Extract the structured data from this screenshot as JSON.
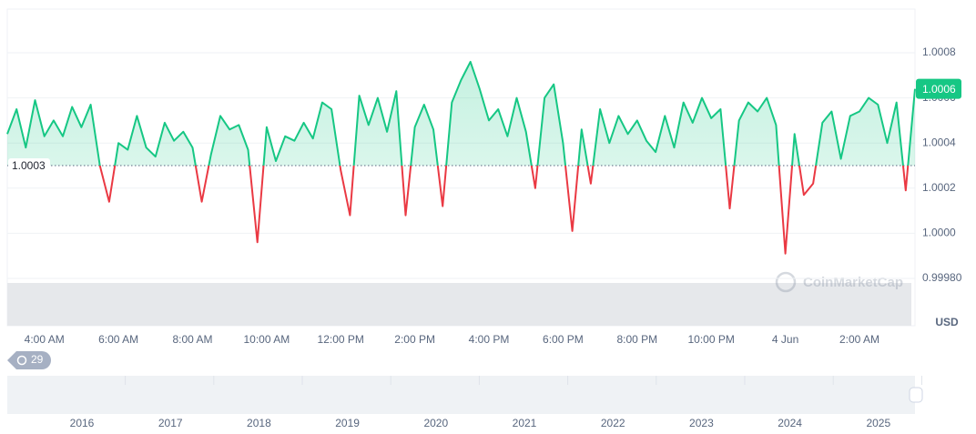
{
  "chart_data": {
    "type": "line",
    "categories": [
      null,
      null,
      null,
      null,
      "4:00 AM",
      null,
      null,
      null,
      null,
      null,
      null,
      null,
      "6:00 AM",
      null,
      null,
      null,
      null,
      null,
      null,
      null,
      "8:00 AM",
      null,
      null,
      null,
      null,
      null,
      null,
      null,
      "10:00 AM",
      null,
      null,
      null,
      null,
      null,
      null,
      null,
      "12:00 PM",
      null,
      null,
      null,
      null,
      null,
      null,
      null,
      "2:00 PM",
      null,
      null,
      null,
      null,
      null,
      null,
      null,
      "4:00 PM",
      null,
      null,
      null,
      null,
      null,
      null,
      null,
      "6:00 PM",
      null,
      null,
      null,
      null,
      null,
      null,
      null,
      "8:00 PM",
      null,
      null,
      null,
      null,
      null,
      null,
      null,
      "10:00 PM",
      null,
      null,
      null,
      null,
      null,
      null,
      null,
      "4 Jun",
      null,
      null,
      null,
      null,
      null,
      null,
      null,
      "2:00 AM",
      null,
      null,
      null,
      null,
      null,
      null
    ],
    "values": [
      1.00044,
      1.00055,
      1.00038,
      1.00059,
      1.00043,
      1.0005,
      1.00043,
      1.00056,
      1.00047,
      1.00057,
      1.0003,
      1.00014,
      1.0004,
      1.00037,
      1.00052,
      1.00038,
      1.00034,
      1.00049,
      1.00041,
      1.00045,
      1.00038,
      1.00014,
      1.00035,
      1.00052,
      1.00046,
      1.00048,
      1.00037,
      0.99996,
      1.00047,
      1.00032,
      1.00043,
      1.00041,
      1.00049,
      1.00042,
      1.00058,
      1.00055,
      1.00028,
      1.00008,
      1.00061,
      1.00048,
      1.0006,
      1.00045,
      1.00063,
      1.00008,
      1.00047,
      1.00057,
      1.00046,
      1.00012,
      1.00058,
      1.00068,
      1.00076,
      1.00064,
      1.0005,
      1.00055,
      1.00043,
      1.0006,
      1.00045,
      1.0002,
      1.0006,
      1.00066,
      1.0004,
      1.00001,
      1.00046,
      1.00022,
      1.00055,
      1.0004,
      1.00052,
      1.00044,
      1.0005,
      1.00041,
      1.00036,
      1.00052,
      1.00038,
      1.00058,
      1.00049,
      1.0006,
      1.00051,
      1.00055,
      1.00011,
      1.0005,
      1.00058,
      1.00054,
      1.0006,
      1.00048,
      0.99991,
      1.00044,
      1.00017,
      1.00022,
      1.00049,
      1.00054,
      1.00033,
      1.00052,
      1.00054,
      1.0006,
      1.00057,
      1.0004,
      1.00058,
      1.00019,
      1.00064
    ],
    "color_up": "#16c784",
    "color_down": "#ea3943",
    "baseline": {
      "value": 1.0003,
      "label": "1.0003"
    },
    "price_label": "1.0006",
    "ylim": [
      0.9998,
      1.001
    ],
    "yticks": [
      {
        "value": 0.9998,
        "label": "0.99980"
      },
      {
        "value": 1.0,
        "label": "1.0000"
      },
      {
        "value": 1.0002,
        "label": "1.0002"
      },
      {
        "value": 1.0004,
        "label": "1.0004"
      },
      {
        "value": 1.0006,
        "label": "1.0006"
      },
      {
        "value": 1.0008,
        "label": "1.0008"
      }
    ],
    "grid": true,
    "currency": "USD",
    "watermark": "CoinMarketCap",
    "badge": "29",
    "navigator_labels": [
      "2016",
      "2017",
      "2018",
      "2019",
      "2020",
      "2021",
      "2022",
      "2023",
      "2024",
      "2025"
    ]
  }
}
